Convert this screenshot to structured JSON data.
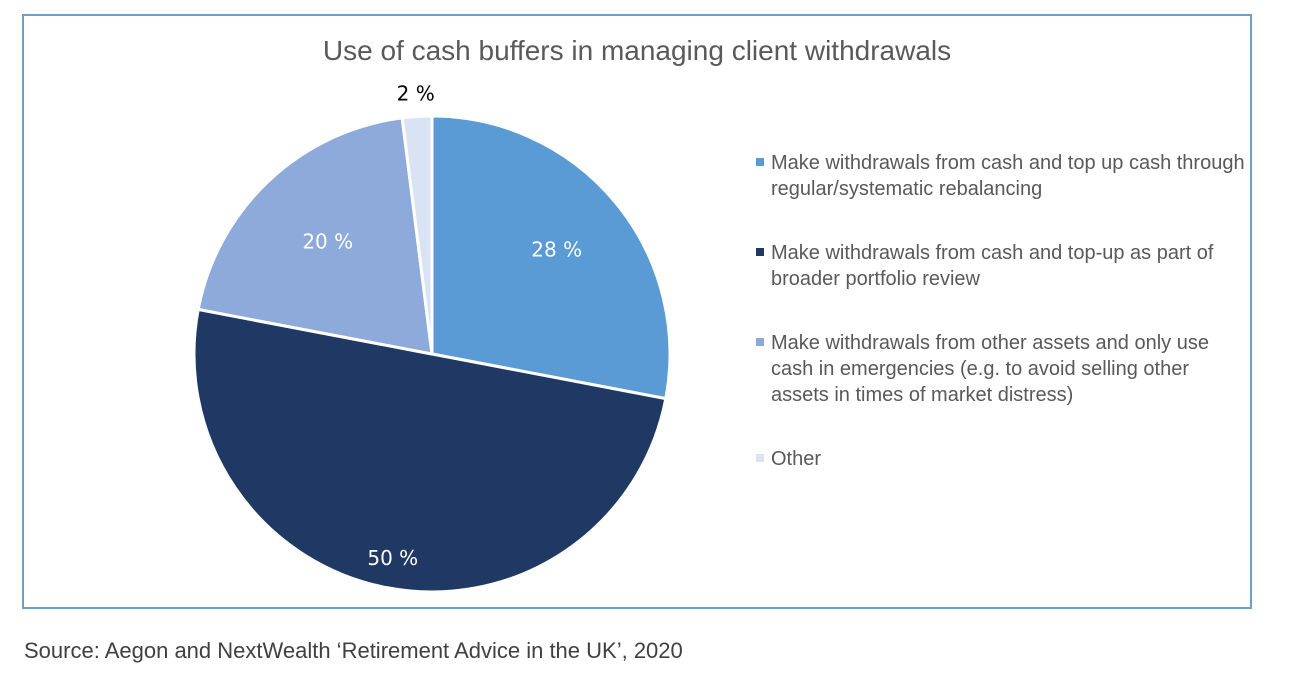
{
  "chart_data": {
    "type": "pie",
    "title": "Use of cash buffers in managing client withdrawals",
    "slices": [
      {
        "label": "Make withdrawals from cash and top up cash through regular/systematic rebalancing",
        "value": 28,
        "display": "28 %",
        "color": "#5b9bd5",
        "label_color": "#ffffff"
      },
      {
        "label": "Make withdrawals from cash and top-up as part of broader portfolio review",
        "value": 50,
        "display": "50 %",
        "color": "#203864",
        "label_color": "#ffffff"
      },
      {
        "label": "Make withdrawals from other assets and only use cash in emergencies (e.g. to avoid selling other assets in times of market distress)",
        "value": 20,
        "display": "20 %",
        "color": "#8eaadb",
        "label_color": "#ffffff"
      },
      {
        "label": "Other",
        "value": 2,
        "display": "2 %",
        "color": "#dae3f3",
        "label_color": "#000000"
      }
    ],
    "legend_position": "right",
    "start_angle": "top, clockwise"
  },
  "source": "Source: Aegon and NextWealth ‘Retirement Advice in the UK’, 2020"
}
